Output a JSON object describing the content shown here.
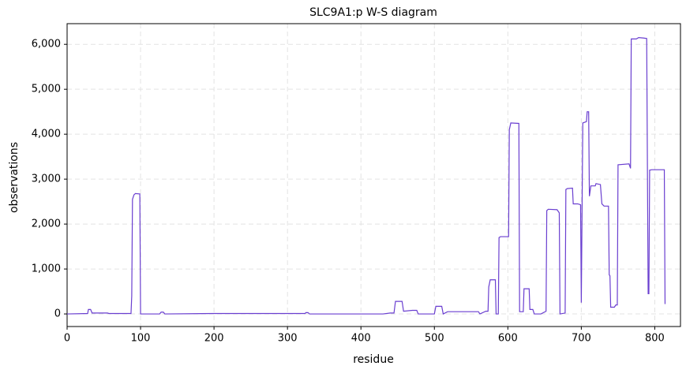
{
  "chart_data": {
    "type": "line",
    "title": "SLC9A1:p W-S diagram",
    "x_label": "residue",
    "y_label": "observations",
    "x": [
      0,
      28,
      29,
      32,
      34,
      55,
      57,
      87,
      88,
      89,
      91,
      93,
      99,
      100,
      126,
      128,
      131,
      133,
      200,
      324,
      325,
      328,
      330,
      430,
      440,
      445,
      447,
      456,
      458,
      470,
      476,
      478,
      500,
      502,
      510,
      512,
      518,
      560,
      562,
      570,
      573,
      574,
      576,
      583,
      584,
      587,
      588,
      590,
      601,
      602,
      604,
      615,
      616,
      621,
      622,
      629,
      630,
      634,
      636,
      645,
      652,
      653,
      655,
      667,
      670,
      671,
      678,
      679,
      681,
      688,
      689,
      695,
      699,
      700,
      702,
      707,
      708,
      710,
      711,
      713,
      719,
      720,
      726,
      728,
      731,
      737,
      738,
      739,
      740,
      745,
      747,
      749,
      750,
      765,
      767,
      768,
      775,
      778,
      785,
      789,
      791,
      792,
      793,
      796,
      813,
      814
    ],
    "series": [
      {
        "name": "observations",
        "color": "#6a3fd0",
        "values": [
          0,
          10,
          100,
          100,
          20,
          20,
          10,
          10,
          400,
          2550,
          2650,
          2680,
          2670,
          0,
          0,
          40,
          40,
          0,
          10,
          10,
          30,
          30,
          0,
          0,
          20,
          20,
          280,
          280,
          60,
          80,
          80,
          0,
          0,
          170,
          170,
          0,
          50,
          50,
          0,
          60,
          60,
          600,
          760,
          760,
          0,
          0,
          1700,
          1720,
          1720,
          4100,
          4250,
          4240,
          50,
          50,
          560,
          560,
          100,
          100,
          0,
          0,
          60,
          2300,
          2330,
          2320,
          2250,
          0,
          20,
          2770,
          2790,
          2800,
          2450,
          2450,
          2430,
          250,
          4250,
          4280,
          4500,
          4500,
          2620,
          2850,
          2850,
          2900,
          2880,
          2450,
          2400,
          2400,
          870,
          850,
          150,
          150,
          200,
          200,
          3320,
          3340,
          3240,
          6120,
          6120,
          6150,
          6140,
          6130,
          450,
          450,
          3200,
          3210,
          3210,
          220
        ]
      }
    ],
    "xlim": [
      0,
      835
    ],
    "xticks": [
      0,
      100,
      200,
      300,
      400,
      500,
      600,
      700,
      800
    ],
    "ylim": [
      -280,
      6460
    ],
    "yticks": [
      0,
      {
        "value": 1000,
        "label": "1,000"
      },
      {
        "value": 2000,
        "label": "2,000"
      },
      {
        "value": 3000,
        "label": "3,000"
      },
      {
        "value": 4000,
        "label": "4,000"
      },
      {
        "value": 5000,
        "label": "5,000"
      },
      {
        "value": 6000,
        "label": "6,000"
      }
    ],
    "grid": true
  }
}
